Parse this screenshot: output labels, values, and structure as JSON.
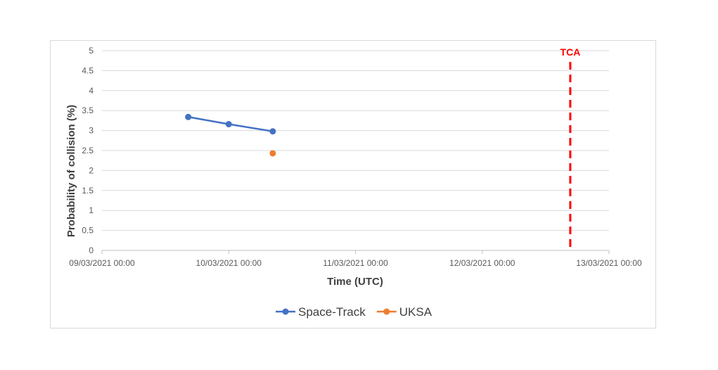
{
  "chart_data": {
    "type": "line",
    "title": "",
    "xlabel": "Time (UTC)",
    "ylabel": "Probability of collision (%)",
    "ylim": [
      0,
      5
    ],
    "yticks": [
      "0",
      "0.5",
      "1",
      "1.5",
      "2",
      "2.5",
      "3",
      "3.5",
      "4",
      "4.5",
      "5"
    ],
    "xlim": [
      "2021-03-09 00:00",
      "2021-03-13 00:00"
    ],
    "xticks": [
      "09/03/2021 00:00",
      "10/03/2021 00:00",
      "11/03/2021 00:00",
      "12/03/2021 00:00",
      "13/03/2021 00:00"
    ],
    "grid": "horizontal",
    "legend_position": "bottom",
    "series": [
      {
        "name": "Space-Track",
        "color": "#4472c4",
        "x": [
          "2021-03-09 16:20",
          "2021-03-10 00:00",
          "2021-03-10 08:20"
        ],
        "values": [
          3.34,
          3.16,
          2.98
        ]
      },
      {
        "name": "UKSA",
        "color": "#ed7d31",
        "x": [
          "2021-03-10 08:20"
        ],
        "values": [
          2.43
        ]
      }
    ],
    "annotations": [
      {
        "label": "TCA",
        "x": "2021-03-12 16:40",
        "color": "#ff0000",
        "style": "dashed"
      }
    ]
  }
}
